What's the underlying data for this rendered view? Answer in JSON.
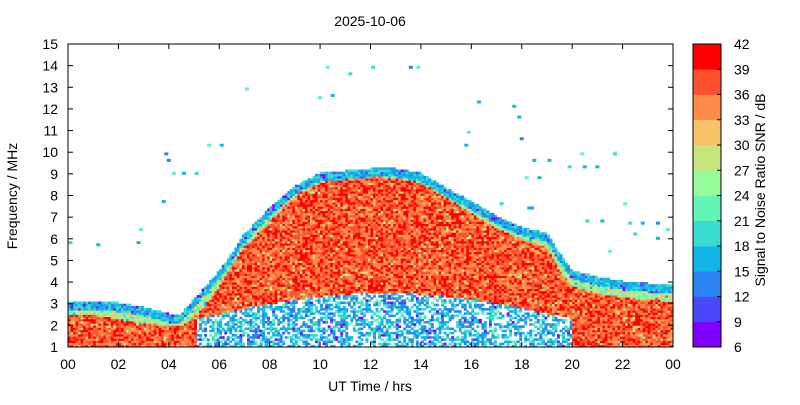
{
  "chart_data": {
    "type": "heatmap",
    "title": "2025-10-06",
    "xlabel": "UT Time / hrs",
    "ylabel": "Frequency / MHz",
    "colorbar_label": "Signal to Noise Ratio SNR / dB",
    "xlim": [
      0,
      24
    ],
    "ylim": [
      1,
      15
    ],
    "x_ticks": [
      "00",
      "02",
      "04",
      "06",
      "08",
      "10",
      "12",
      "14",
      "16",
      "18",
      "20",
      "22",
      "00"
    ],
    "y_ticks": [
      "1",
      "2",
      "3",
      "4",
      "5",
      "6",
      "7",
      "8",
      "9",
      "10",
      "11",
      "12",
      "13",
      "14",
      "15"
    ],
    "colorbar_ticks": [
      "6",
      "9",
      "12",
      "15",
      "18",
      "21",
      "24",
      "27",
      "30",
      "33",
      "36",
      "39",
      "42"
    ],
    "colorbar_range": [
      6,
      42
    ],
    "colorbar_colors": [
      "#8000ff",
      "#4a48fb",
      "#2b84f1",
      "#12b6e6",
      "#38dcd0",
      "#62f6b6",
      "#98fb9a",
      "#c8e47c",
      "#f6c268",
      "#ff8c48",
      "#ff5030",
      "#ff0000"
    ],
    "grid": false,
    "legend": "colorbar-right",
    "envelope": {
      "description_hours": [
        0,
        1,
        2,
        3,
        4,
        4.5,
        5,
        5.5,
        6,
        6.5,
        7,
        8,
        9,
        10,
        11,
        12,
        13,
        14,
        15,
        16,
        17,
        18,
        19,
        19.5,
        20,
        21,
        22,
        23,
        24
      ],
      "upper_mhz": [
        3.1,
        3.1,
        3.0,
        2.8,
        2.5,
        2.5,
        3.2,
        3.8,
        4.5,
        5.3,
        6.2,
        7.4,
        8.4,
        9.0,
        9.1,
        9.2,
        9.2,
        9.0,
        8.3,
        7.7,
        7.0,
        6.5,
        6.2,
        5.3,
        4.5,
        4.2,
        4.0,
        3.9,
        3.9
      ],
      "strong_mhz": [
        2.5,
        2.5,
        2.3,
        2.1,
        2.0,
        2.0,
        2.4,
        3.0,
        3.8,
        4.8,
        5.6,
        6.8,
        8.0,
        8.6,
        8.8,
        8.9,
        8.8,
        8.6,
        7.9,
        7.2,
        6.5,
        6.0,
        5.6,
        4.6,
        3.8,
        3.5,
        3.3,
        3.2,
        3.1
      ]
    },
    "scattered_points": [
      {
        "x": 3.9,
        "y": 9.9
      },
      {
        "x": 4.0,
        "y": 9.6
      },
      {
        "x": 4.2,
        "y": 9.0
      },
      {
        "x": 4.6,
        "y": 9.0
      },
      {
        "x": 5.1,
        "y": 9.0
      },
      {
        "x": 5.6,
        "y": 10.3
      },
      {
        "x": 6.1,
        "y": 10.3
      },
      {
        "x": 3.8,
        "y": 7.7
      },
      {
        "x": 2.9,
        "y": 6.4
      },
      {
        "x": 2.8,
        "y": 5.8
      },
      {
        "x": 1.2,
        "y": 5.7
      },
      {
        "x": 0.1,
        "y": 5.8
      },
      {
        "x": 7.1,
        "y": 12.9
      },
      {
        "x": 10.0,
        "y": 12.5
      },
      {
        "x": 10.5,
        "y": 12.6
      },
      {
        "x": 10.3,
        "y": 13.9
      },
      {
        "x": 11.2,
        "y": 13.6
      },
      {
        "x": 12.1,
        "y": 13.9
      },
      {
        "x": 13.6,
        "y": 13.9
      },
      {
        "x": 13.9,
        "y": 13.9
      },
      {
        "x": 16.3,
        "y": 12.3
      },
      {
        "x": 17.7,
        "y": 12.1
      },
      {
        "x": 17.9,
        "y": 11.6
      },
      {
        "x": 15.9,
        "y": 10.9
      },
      {
        "x": 15.8,
        "y": 10.3
      },
      {
        "x": 18.0,
        "y": 10.6
      },
      {
        "x": 18.5,
        "y": 9.6
      },
      {
        "x": 19.1,
        "y": 9.6
      },
      {
        "x": 19.9,
        "y": 9.3
      },
      {
        "x": 20.5,
        "y": 9.3
      },
      {
        "x": 21.0,
        "y": 9.3
      },
      {
        "x": 21.7,
        "y": 9.9
      },
      {
        "x": 20.4,
        "y": 9.9
      },
      {
        "x": 18.2,
        "y": 8.8
      },
      {
        "x": 18.7,
        "y": 8.8
      },
      {
        "x": 17.2,
        "y": 7.6
      },
      {
        "x": 18.4,
        "y": 7.4
      },
      {
        "x": 20.6,
        "y": 6.8
      },
      {
        "x": 21.2,
        "y": 6.8
      },
      {
        "x": 22.3,
        "y": 6.7
      },
      {
        "x": 22.8,
        "y": 6.7
      },
      {
        "x": 23.4,
        "y": 6.7
      },
      {
        "x": 23.8,
        "y": 6.4
      },
      {
        "x": 21.5,
        "y": 5.4
      },
      {
        "x": 22.1,
        "y": 7.6
      },
      {
        "x": 22.5,
        "y": 6.2
      },
      {
        "x": 23.4,
        "y": 6.0
      },
      {
        "x": 18.3,
        "y": 7.4
      }
    ]
  }
}
